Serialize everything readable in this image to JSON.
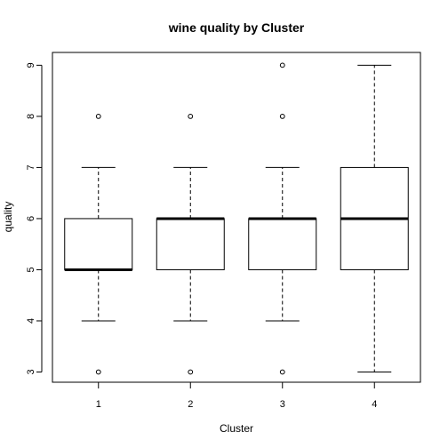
{
  "chart_data": {
    "type": "box",
    "title": "wine quality by Cluster",
    "xlabel": "Cluster",
    "ylabel": "quality",
    "categories": [
      "1",
      "2",
      "3",
      "4"
    ],
    "ylim": [
      2.8,
      9.25
    ],
    "y_ticks": [
      "3",
      "4",
      "5",
      "6",
      "7",
      "8",
      "9"
    ],
    "grid": false,
    "boxes": [
      {
        "category": "1",
        "whisker_low": 4,
        "q1": 5,
        "median": 5,
        "q3": 6,
        "whisker_high": 7,
        "outliers": [
          3,
          8
        ]
      },
      {
        "category": "2",
        "whisker_low": 4,
        "q1": 5,
        "median": 6,
        "q3": 6,
        "whisker_high": 7,
        "outliers": [
          3,
          8
        ]
      },
      {
        "category": "3",
        "whisker_low": 4,
        "q1": 5,
        "median": 6,
        "q3": 6,
        "whisker_high": 7,
        "outliers": [
          3,
          8,
          9
        ]
      },
      {
        "category": "4",
        "whisker_low": 3,
        "q1": 5,
        "median": 6,
        "q3": 7,
        "whisker_high": 9,
        "outliers": []
      }
    ]
  }
}
